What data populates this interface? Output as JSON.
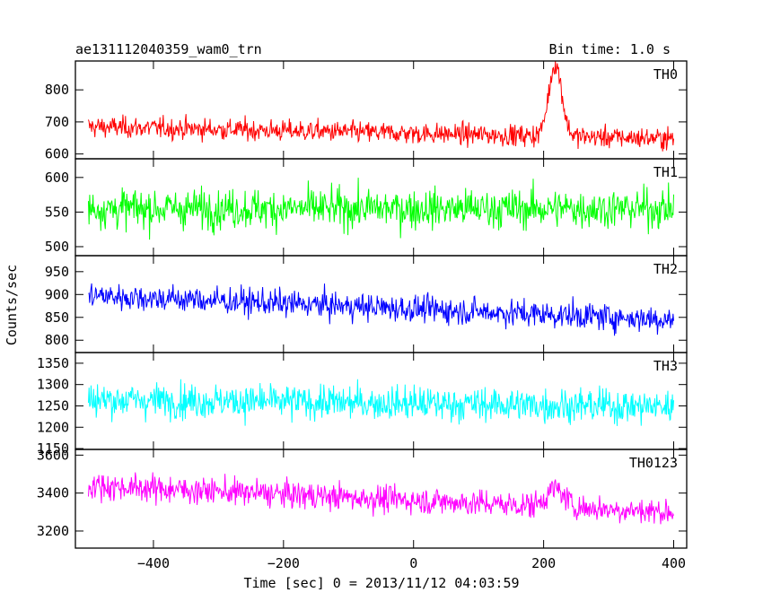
{
  "header": {
    "left_title": "ae131112040359_wam0_trn",
    "right_title": "Bin time: 1.0 s"
  },
  "chart_data": {
    "type": "line",
    "title": "ae131112040359_wam0_trn",
    "subtitle": "Bin time: 1.0 s",
    "xlabel": "Time [sec] 0 = 2013/11/12 04:03:59",
    "ylabel": "Counts/sec",
    "xlim": [
      -520,
      420
    ],
    "x_ticks": [
      -400,
      -200,
      0,
      200,
      400
    ],
    "x_range": [
      -500,
      400
    ],
    "panels": [
      {
        "name": "TH0",
        "color": "#ff0000",
        "ylim": [
          585,
          890
        ],
        "y_ticks": [
          600,
          700,
          800
        ],
        "mean_start": 685,
        "mean_end": 648,
        "spread": 28,
        "peaks": [
          {
            "x": 218,
            "y": 880,
            "width": 10
          }
        ]
      },
      {
        "name": "TH1",
        "color": "#00ff00",
        "ylim": [
          487,
          627
        ],
        "y_ticks": [
          500,
          550,
          600
        ],
        "mean_start": 555,
        "mean_end": 555,
        "spread": 24,
        "peaks": []
      },
      {
        "name": "TH2",
        "color": "#0000ff",
        "ylim": [
          773,
          985
        ],
        "y_ticks": [
          800,
          850,
          900,
          950
        ],
        "mean_start": 898,
        "mean_end": 845,
        "spread": 25,
        "peaks": []
      },
      {
        "name": "TH3",
        "color": "#00ffff",
        "ylim": [
          1148,
          1375
        ],
        "y_ticks": [
          1150,
          1200,
          1250,
          1300,
          1350
        ],
        "mean_start": 1265,
        "mean_end": 1248,
        "spread": 34,
        "peaks": []
      },
      {
        "name": "TH0123",
        "color": "#ff00ff",
        "ylim": [
          3110,
          3630
        ],
        "y_ticks": [
          3200,
          3400,
          3600
        ],
        "mean_start": 3440,
        "mean_end": 3300,
        "spread": 60,
        "peaks": [
          {
            "x": 218,
            "y": 3420,
            "width": 14
          }
        ]
      }
    ]
  }
}
